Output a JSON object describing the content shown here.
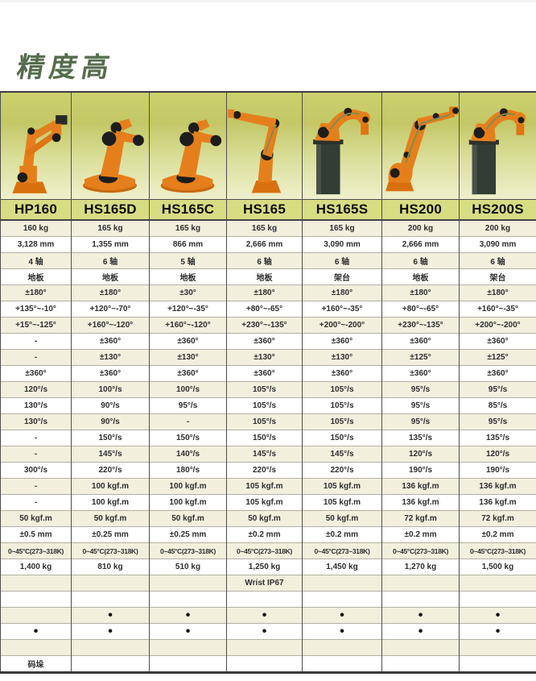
{
  "page": {
    "title": "精度高"
  },
  "colors": {
    "title_green": "#566c4c",
    "model_band": "#d7dd83",
    "row_alternate": "#f2f0dd",
    "robot_orange": "#e57f1c",
    "photo_bg_top": "#c3c765",
    "photo_bg_bottom": "#eef0cc"
  },
  "table": {
    "columns": [
      {
        "model": "HP160",
        "robot": "palletizer"
      },
      {
        "model": "HS165D",
        "robot": "compact"
      },
      {
        "model": "HS165C",
        "robot": "compact"
      },
      {
        "model": "HS165",
        "robot": "reach-left"
      },
      {
        "model": "HS165S",
        "robot": "pedestal"
      },
      {
        "model": "HS200",
        "robot": "elbow"
      },
      {
        "model": "HS200S",
        "robot": "pedestal"
      }
    ],
    "rows": [
      {
        "cells": [
          "160 kg",
          "165 kg",
          "165 kg",
          "165 kg",
          "165 kg",
          "200 kg",
          "200 kg"
        ]
      },
      {
        "cells": [
          "3,128 mm",
          "1,355 mm",
          "866 mm",
          "2,666 mm",
          "3,090 mm",
          "2,666 mm",
          "3,090 mm"
        ]
      },
      {
        "cells": [
          "4 轴",
          "6 轴",
          "5 轴",
          "6 轴",
          "6 轴",
          "6 轴",
          "6 轴"
        ]
      },
      {
        "cells": [
          "地板",
          "地板",
          "地板",
          "地板",
          "架台",
          "地板",
          "架台"
        ]
      },
      {
        "cells": [
          "±180°",
          "±180°",
          "±30°",
          "±180°",
          "±180°",
          "±180°",
          "±180°"
        ]
      },
      {
        "cells": [
          "+135°~-10°",
          "+120°~-70°",
          "+120°~-35°",
          "+80°~-65°",
          "+160°~-35°",
          "+80°~-65°",
          "+160°~-35°"
        ]
      },
      {
        "cells": [
          "+15°~-125°",
          "+160°~-120°",
          "+160°~-120°",
          "+230°~-135°",
          "+200°~-200°",
          "+230°~-135°",
          "+200°~-200°"
        ]
      },
      {
        "cells": [
          "-",
          "±360°",
          "±360°",
          "±360°",
          "±360°",
          "±360°",
          "±360°"
        ]
      },
      {
        "cells": [
          "-",
          "±130°",
          "±130°",
          "±130°",
          "±130°",
          "±125°",
          "±125°"
        ]
      },
      {
        "cells": [
          "±360°",
          "±360°",
          "±360°",
          "±360°",
          "±360°",
          "±360°",
          "±360°"
        ]
      },
      {
        "cells": [
          "120°/s",
          "100°/s",
          "100°/s",
          "105°/s",
          "105°/s",
          "95°/s",
          "95°/s"
        ]
      },
      {
        "cells": [
          "130°/s",
          "90°/s",
          "95°/s",
          "105°/s",
          "105°/s",
          "95°/s",
          "85°/s"
        ]
      },
      {
        "cells": [
          "130°/s",
          "90°/s",
          "-",
          "105°/s",
          "105°/s",
          "95°/s",
          "95°/s"
        ]
      },
      {
        "cells": [
          "-",
          "150°/s",
          "150°/s",
          "150°/s",
          "150°/s",
          "135°/s",
          "135°/s"
        ]
      },
      {
        "cells": [
          "-",
          "145°/s",
          "140°/s",
          "145°/s",
          "145°/s",
          "120°/s",
          "120°/s"
        ]
      },
      {
        "cells": [
          "300°/s",
          "220°/s",
          "180°/s",
          "220°/s",
          "220°/s",
          "190°/s",
          "190°/s"
        ]
      },
      {
        "cells": [
          "-",
          "100 kgf.m",
          "100 kgf.m",
          "105 kgf.m",
          "105 kgf.m",
          "136 kgf.m",
          "136 kgf.m"
        ]
      },
      {
        "cells": [
          "-",
          "100 kgf.m",
          "100 kgf.m",
          "105 kgf.m",
          "105 kgf.m",
          "136 kgf.m",
          "136 kgf.m"
        ]
      },
      {
        "cells": [
          "50 kgf.m",
          "50 kgf.m",
          "50 kgf.m",
          "50 kgf.m",
          "50 kgf.m",
          "72 kgf.m",
          "72 kgf.m"
        ]
      },
      {
        "cells": [
          "±0.5 mm",
          "±0.25 mm",
          "±0.25 mm",
          "±0.2 mm",
          "±0.2 mm",
          "±0.2 mm",
          "±0.2 mm"
        ]
      },
      {
        "cells": [
          "0~45°C(273~318K)",
          "0~45°C(273~318K)",
          "0~45°C(273~318K)",
          "0~45°C(273~318K)",
          "0~45°C(273~318K)",
          "0~45°C(273~318K)",
          "0~45°C(273~318K)"
        ]
      },
      {
        "cells": [
          "1,400 kg",
          "810 kg",
          "510 kg",
          "1,250 kg",
          "1,450 kg",
          "1,270 kg",
          "1,500 kg"
        ]
      },
      {
        "cells": [
          "",
          "",
          "",
          "Wrist IP67",
          "",
          "",
          ""
        ]
      },
      {
        "cells": [
          "",
          "",
          "",
          "",
          "",
          "",
          ""
        ]
      },
      {
        "cells": [
          "",
          "•",
          "•",
          "•",
          "•",
          "•",
          "•"
        ]
      },
      {
        "cells": [
          "•",
          "•",
          "•",
          "•",
          "•",
          "•",
          "•"
        ]
      },
      {
        "cells": [
          "",
          "",
          "",
          "",
          "",
          "",
          ""
        ]
      },
      {
        "cells": [
          "码垛",
          "",
          "",
          "",
          "",
          "",
          ""
        ]
      }
    ]
  }
}
